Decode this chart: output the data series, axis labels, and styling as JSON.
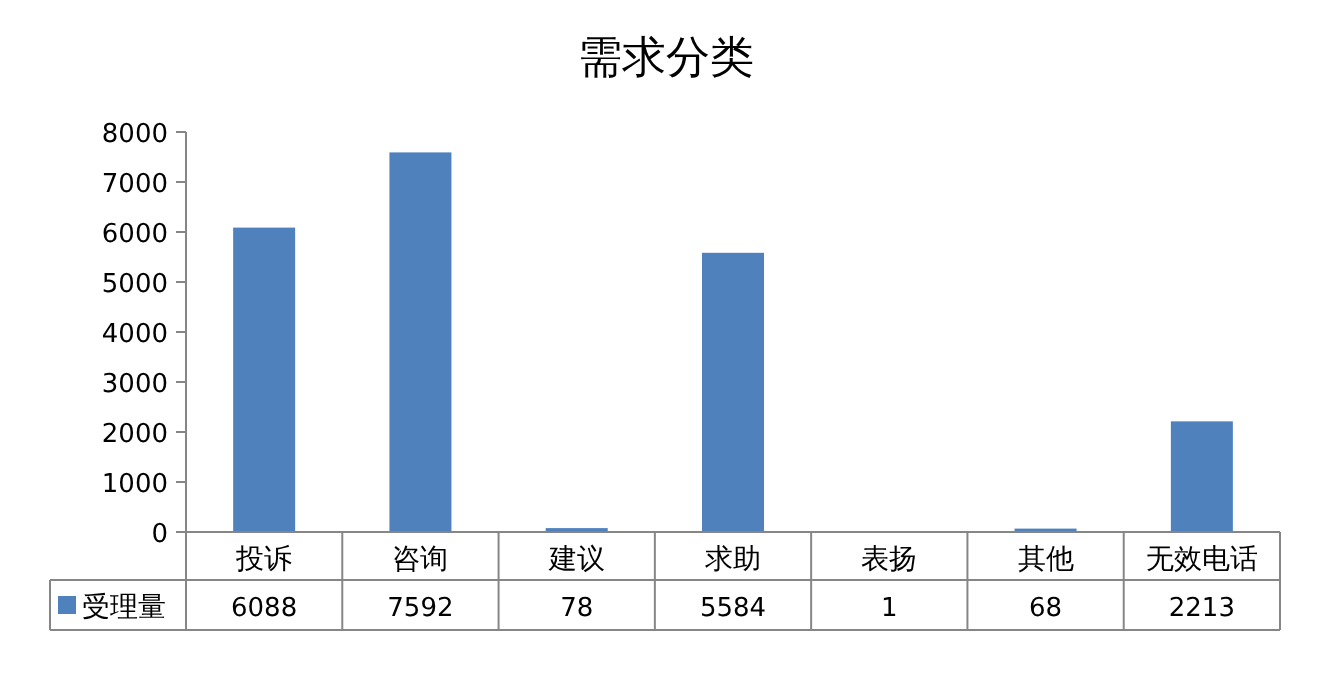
{
  "chart_data": {
    "type": "bar",
    "title": "需求分类",
    "categories": [
      "投诉",
      "咨询",
      "建议",
      "求助",
      "表扬",
      "其他",
      "无效电话"
    ],
    "series": [
      {
        "name": "受理量",
        "color": "#4f81bd",
        "values": [
          6088,
          7592,
          78,
          5584,
          1,
          68,
          2213
        ]
      }
    ],
    "ylim": [
      0,
      8000
    ],
    "yticks": [
      0,
      1000,
      2000,
      3000,
      4000,
      5000,
      6000,
      7000,
      8000
    ],
    "data_labels": true,
    "legend": "bottom"
  }
}
